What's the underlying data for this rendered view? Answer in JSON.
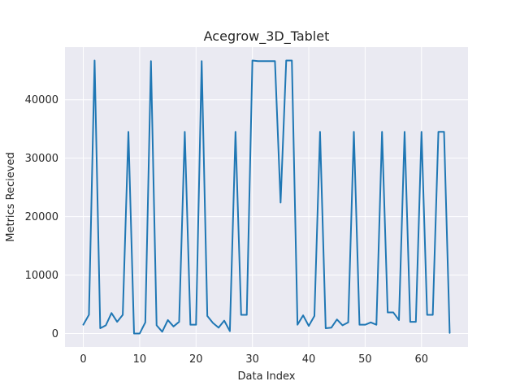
{
  "chart_data": {
    "type": "line",
    "title": "Acegrow_3D_Tablet",
    "xlabel": "Data Index",
    "ylabel": "Metrics Recieved",
    "xlim": [
      -3.25,
      68.25
    ],
    "ylim": [
      -2300,
      49000
    ],
    "xticks": [
      0,
      10,
      20,
      30,
      40,
      50,
      60
    ],
    "yticks": [
      0,
      10000,
      20000,
      30000,
      40000
    ],
    "grid": true,
    "line_color": "#1f77b4",
    "background_color": "#eaeaf2",
    "series": [
      {
        "values": [
          1500,
          3200,
          46700,
          900,
          1400,
          3500,
          2000,
          3200,
          34500,
          0,
          0,
          1900,
          46600,
          1400,
          300,
          2300,
          1200,
          2000,
          34500,
          1500,
          1500,
          46600,
          3000,
          1800,
          1000,
          2200,
          400,
          34500,
          3200,
          3200,
          46700,
          46600,
          46600,
          46600,
          46600,
          22400,
          46700,
          46700,
          1500,
          3100,
          1300,
          3000,
          34500,
          900,
          1000,
          2400,
          1400,
          1900,
          34500,
          1500,
          1500,
          1900,
          1500,
          34500,
          3600,
          3600,
          2300,
          34500,
          2000,
          2000,
          34500,
          3200,
          3200,
          34500,
          34500,
          100
        ]
      }
    ]
  }
}
